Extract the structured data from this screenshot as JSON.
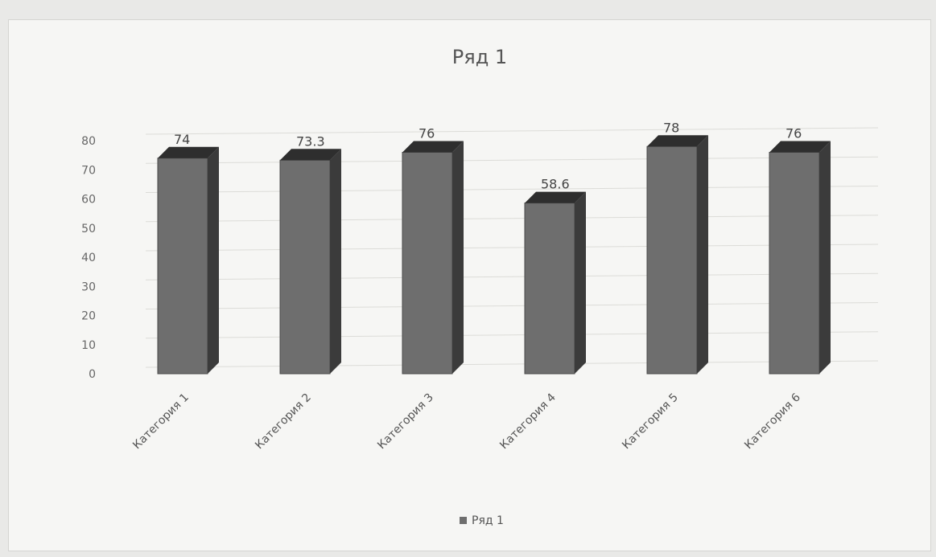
{
  "chart_data": {
    "type": "bar",
    "title": "Ряд 1",
    "categories": [
      "Категория 1",
      "Категория 2",
      "Категория 3",
      "Категория 4",
      "Категория 5",
      "Категория 6"
    ],
    "series": [
      {
        "name": "Ряд 1",
        "values": [
          74,
          73.3,
          76,
          58.6,
          78,
          76
        ],
        "labels": [
          "74",
          "73.3",
          "76",
          "58.6",
          "78",
          "76"
        ]
      }
    ],
    "ylim": [
      0,
      80
    ],
    "yticks": [
      "0",
      "10",
      "20",
      "30",
      "40",
      "50",
      "60",
      "70",
      "80"
    ],
    "grid": true,
    "legend": "bottom",
    "bar_color": "#6e6e6e",
    "bar_side_color": "#3b3b3b",
    "bar_top_color": "#2e2e2e"
  }
}
